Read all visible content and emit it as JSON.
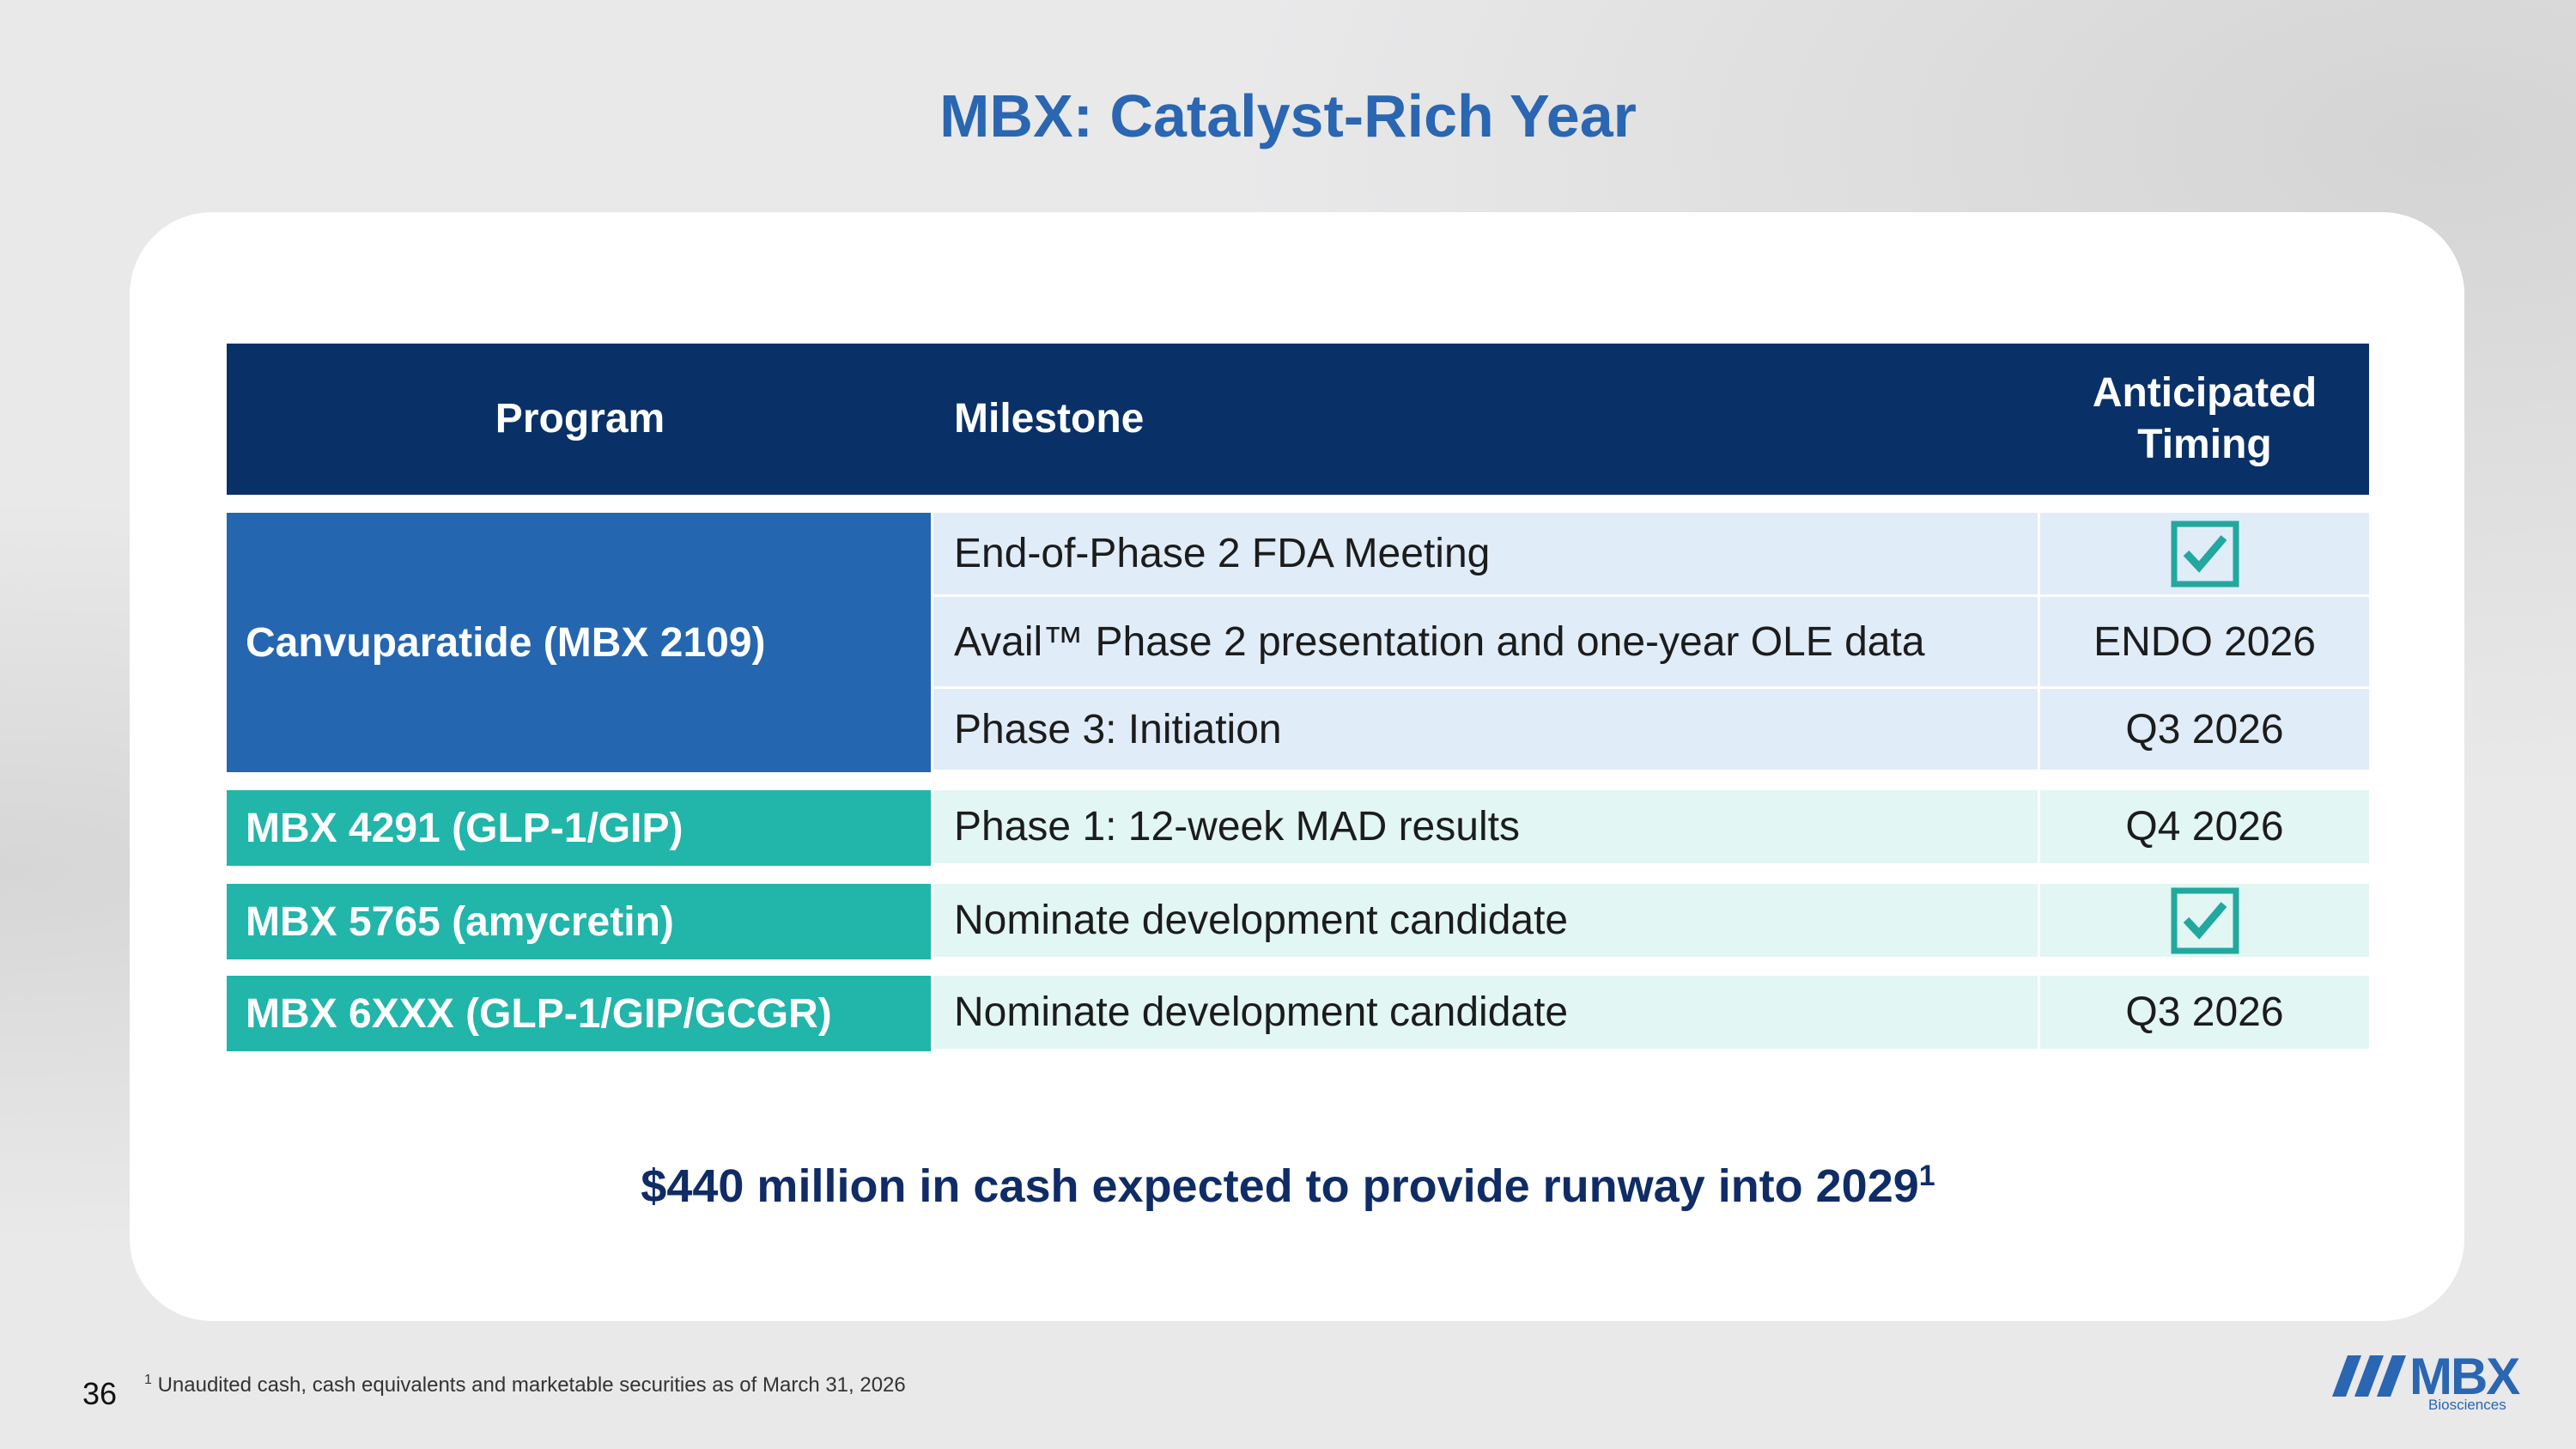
{
  "title": "MBX: Catalyst-Rich Year",
  "table": {
    "header": [
      "Program",
      "Milestone",
      "Anticipated Timing"
    ],
    "rows": [
      {
        "program": "Canvuparatide (MBX 2109)",
        "milestones": [
          {
            "milestone": "End-of-Phase 2 FDA Meeting"
          },
          {
            "milestone": "Avail™ Phase 2 presentation and one-year OLE data",
            "timing": "ENDO 2026"
          },
          {
            "milestone": "Phase 3: Initiation",
            "timing": "Q3 2026"
          }
        ]
      },
      {
        "program": "MBX 4291 (GLP-1/GIP)",
        "milestones": [
          {
            "milestone": "Phase 1: 12-week MAD results",
            "timing": "Q4 2026"
          }
        ]
      },
      {
        "program": "MBX 5765 (amycretin)",
        "milestones": [
          {
            "milestone": "Nominate development candidate"
          }
        ]
      },
      {
        "program": "MBX 6XXX (GLP-1/GIP/GCGR)",
        "milestones": [
          {
            "milestone": "Nominate development candidate",
            "timing": "Q3 2026"
          }
        ]
      }
    ]
  },
  "cash_statement": {
    "text": "$440 million in cash expected to provide runway into 2029",
    "footnote_ref": "1"
  },
  "footnote": {
    "marker": "1",
    "text": "Unaudited cash, cash equivalents and marketable securities as of March 31, 2026"
  },
  "page_number": "36",
  "logo": {
    "name": "MBX",
    "subtitle": "Biosciences"
  }
}
